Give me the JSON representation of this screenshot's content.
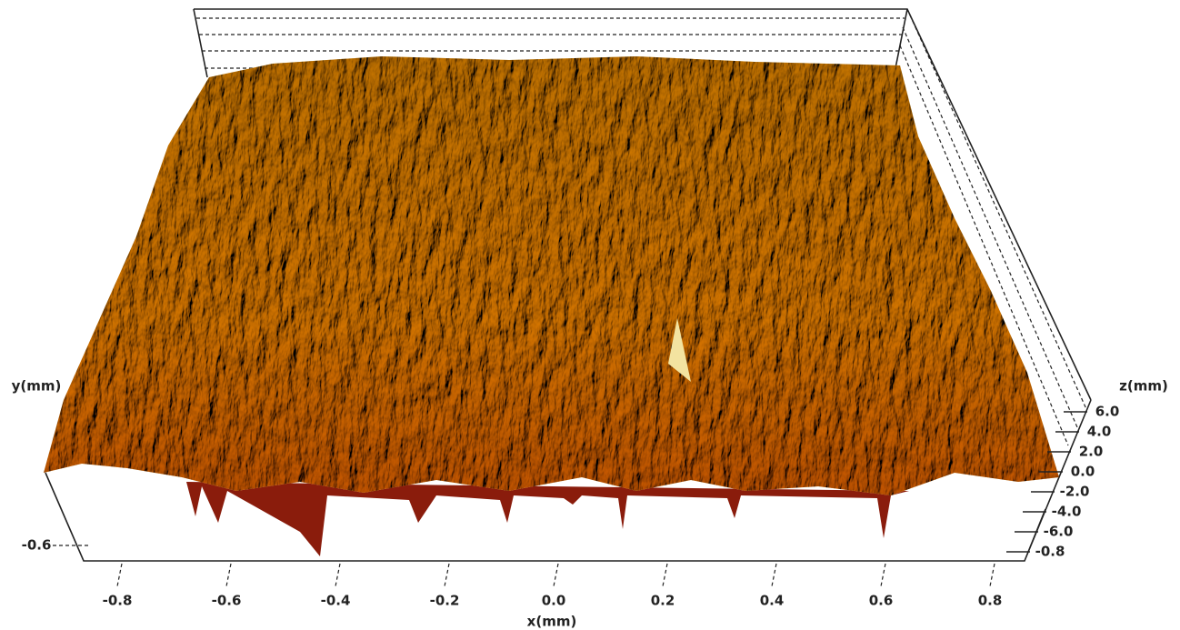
{
  "chart_data": {
    "type": "surface3d",
    "x_label": "x(mm)",
    "y_label": "y(mm)",
    "z_label": "z(mm)",
    "xlim": [
      -0.9,
      0.9
    ],
    "xticks": [
      -0.8,
      -0.6,
      -0.4,
      -0.2,
      {
        "value": 0,
        "label": "0.0"
      },
      0.2,
      0.4,
      0.6,
      0.8
    ],
    "yticks": [
      -0.6
    ],
    "zticks": [
      {
        "value": 6,
        "label": "6.0"
      },
      {
        "value": 4,
        "label": "4.0"
      },
      {
        "value": 2,
        "label": "2.0"
      },
      {
        "value": 0,
        "label": "0.0"
      },
      {
        "value": -2,
        "label": "-2.0"
      },
      {
        "value": -4,
        "label": "-4.0"
      },
      {
        "value": -6,
        "label": "-6.0"
      },
      -0.8
    ],
    "color": "#d08a1c"
  }
}
